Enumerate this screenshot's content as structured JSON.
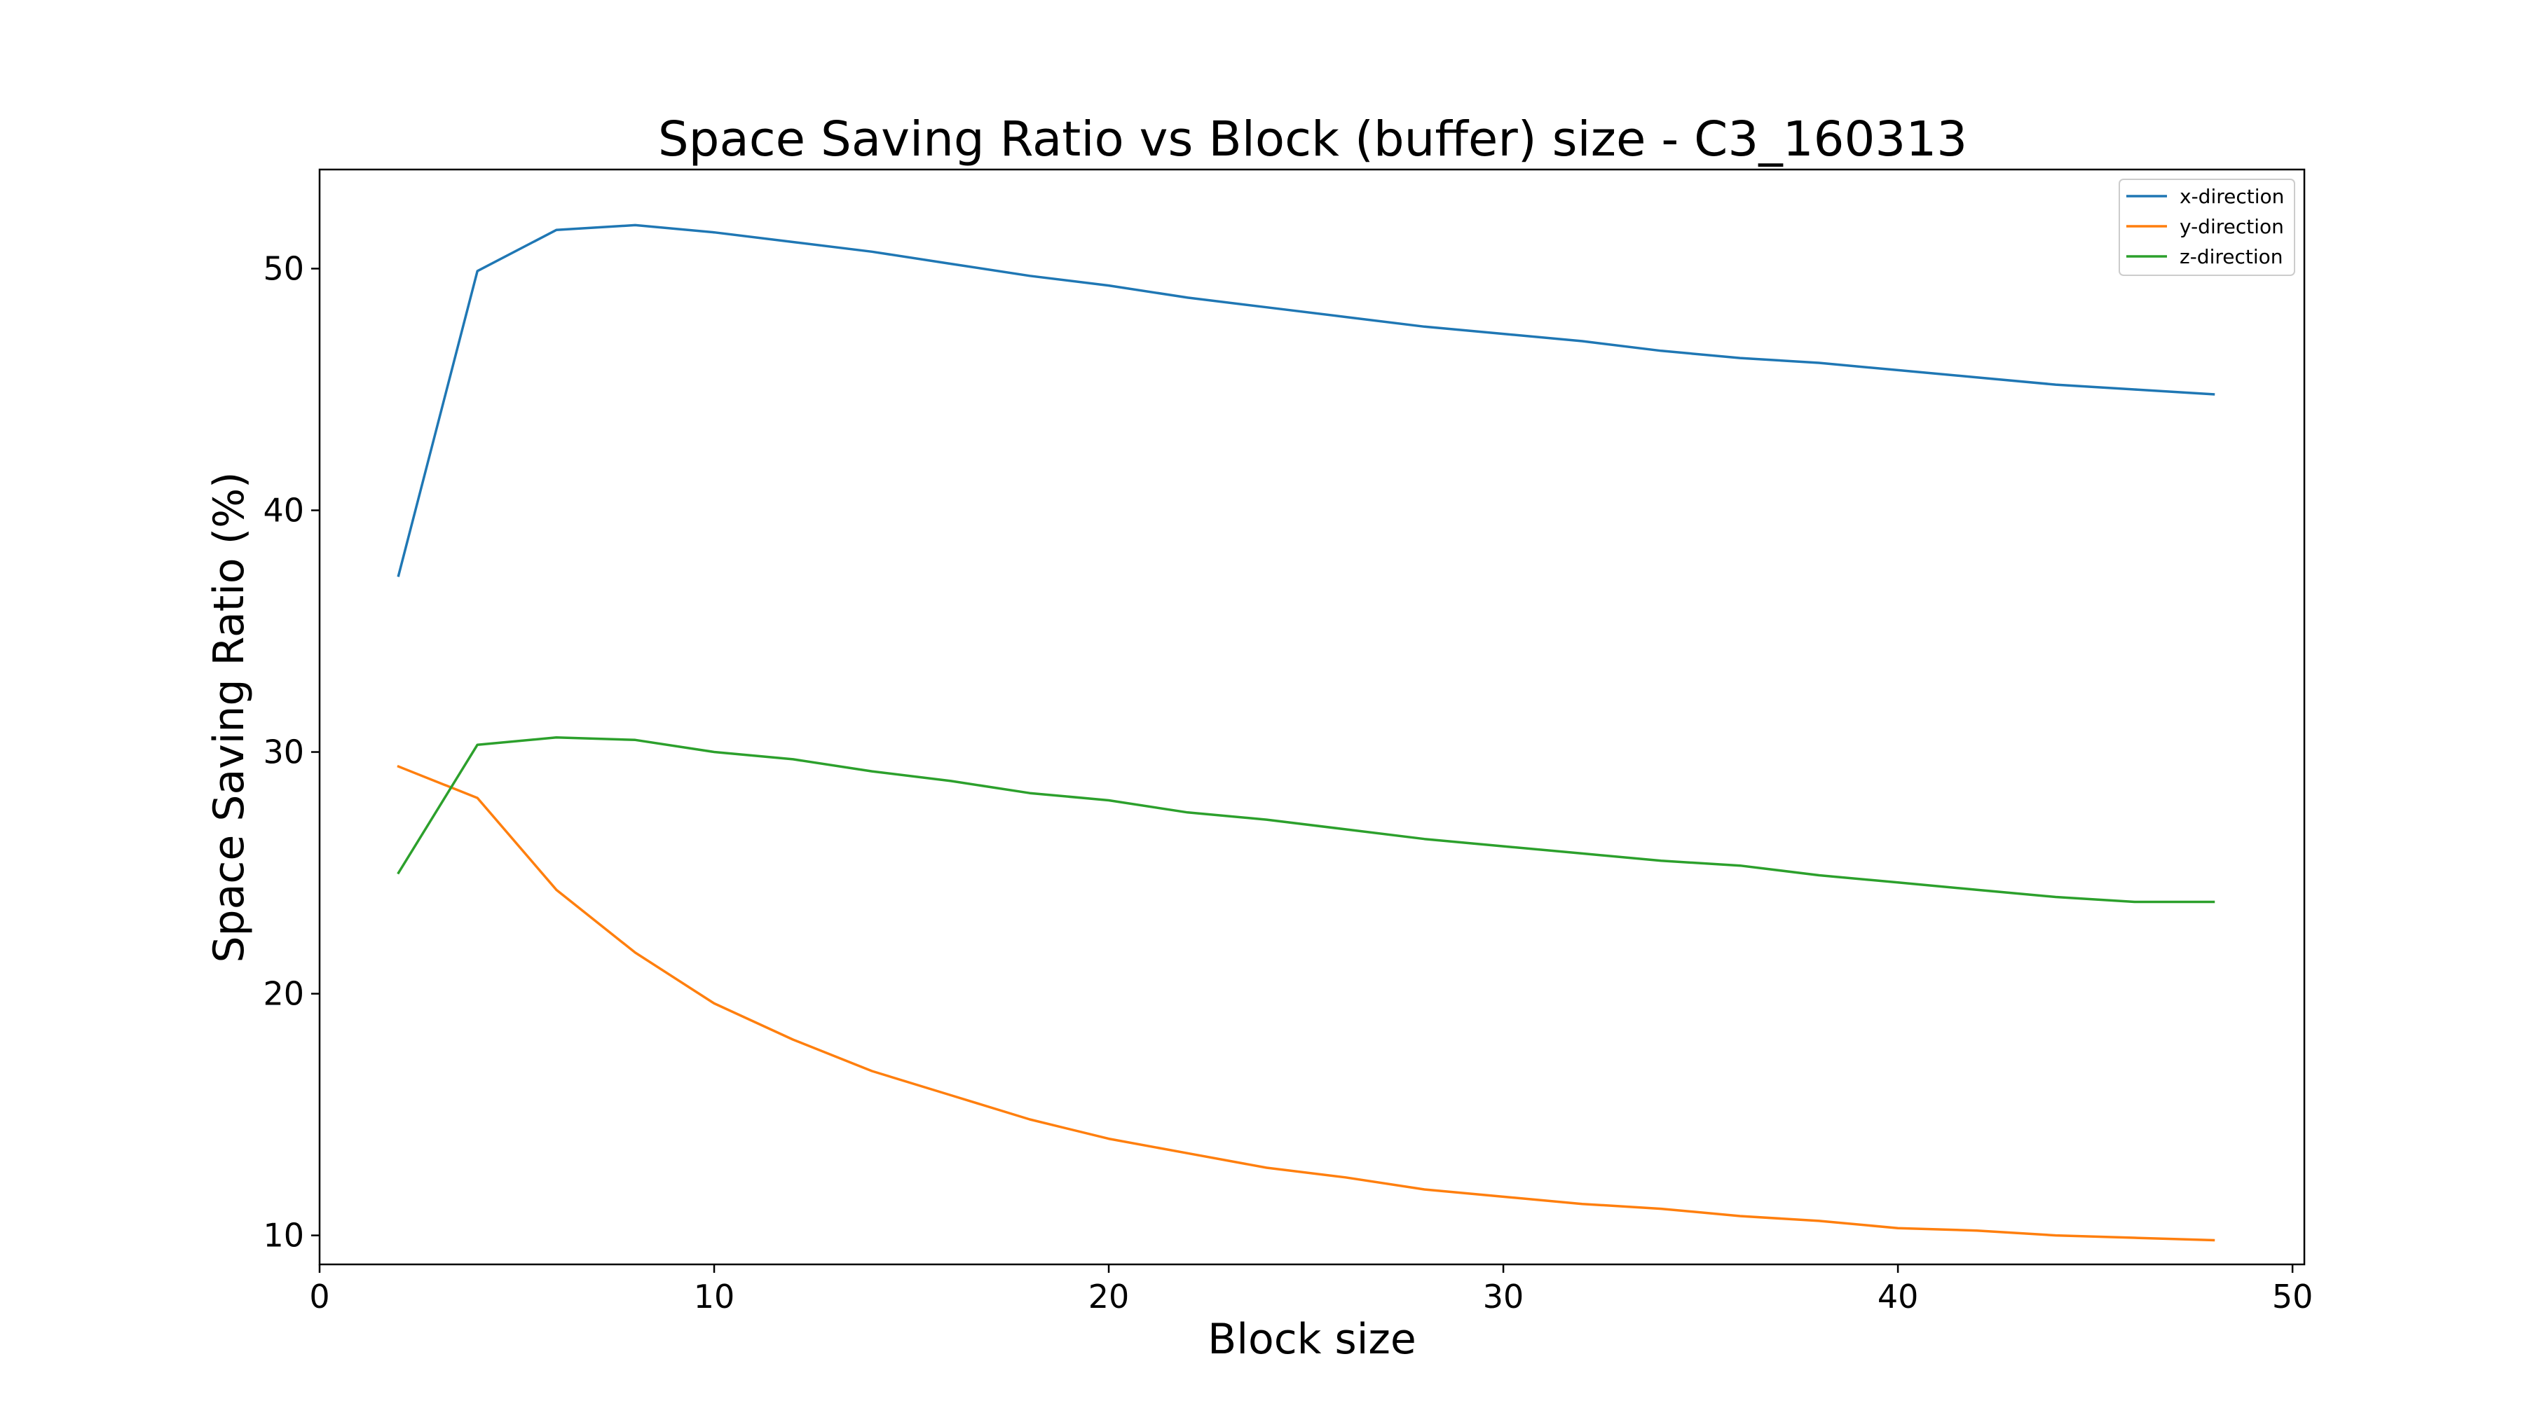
{
  "chart_data": {
    "type": "line",
    "title": "Space Saving Ratio vs Block (buffer) size - C3_160313",
    "xlabel": "Block size",
    "ylabel": "Space Saving Ratio (%)",
    "xlim": [
      0,
      50.3
    ],
    "ylim": [
      8.8,
      54.1
    ],
    "x_ticks": [
      0,
      10,
      20,
      30,
      40,
      50
    ],
    "y_ticks": [
      10,
      20,
      30,
      40,
      50
    ],
    "grid": false,
    "legend_position": "top-right",
    "x": [
      2,
      4,
      6,
      8,
      10,
      12,
      14,
      16,
      18,
      20,
      22,
      24,
      26,
      28,
      30,
      32,
      34,
      36,
      38,
      40,
      42,
      44,
      46,
      48
    ],
    "series": [
      {
        "name": "x-direction",
        "color": "#1f77b4",
        "values": [
          37.3,
          49.9,
          51.6,
          51.8,
          51.5,
          51.1,
          50.7,
          50.2,
          49.7,
          49.3,
          48.8,
          48.4,
          48.0,
          47.6,
          47.3,
          47.0,
          46.6,
          46.3,
          46.1,
          45.8,
          45.5,
          45.2,
          45.0,
          44.8
        ]
      },
      {
        "name": "y-direction",
        "color": "#ff7f0e",
        "values": [
          29.4,
          28.1,
          24.3,
          21.7,
          19.6,
          18.1,
          16.8,
          15.8,
          14.8,
          14.0,
          13.4,
          12.8,
          12.4,
          11.9,
          11.6,
          11.3,
          11.1,
          10.8,
          10.6,
          10.3,
          10.2,
          10.0,
          9.9,
          9.8
        ]
      },
      {
        "name": "z-direction",
        "color": "#2ca02c",
        "values": [
          25.0,
          30.3,
          30.6,
          30.5,
          30.0,
          29.7,
          29.2,
          28.8,
          28.3,
          28.0,
          27.5,
          27.2,
          26.8,
          26.4,
          26.1,
          25.8,
          25.5,
          25.3,
          24.9,
          24.6,
          24.3,
          24.0,
          23.8,
          23.8
        ]
      }
    ]
  }
}
